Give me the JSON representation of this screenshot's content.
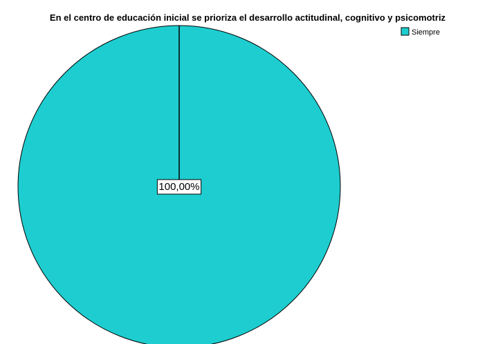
{
  "chart_data": {
    "type": "pie",
    "title": "En el centro de educación inicial se prioriza el desarrollo actitudinal, cognitivo y psicomotriz",
    "categories": [
      "Siempre"
    ],
    "values": [
      100
    ],
    "data_labels": [
      "100,00%"
    ],
    "colors": [
      "#1ECDCF"
    ],
    "legend_position": "top-right"
  }
}
